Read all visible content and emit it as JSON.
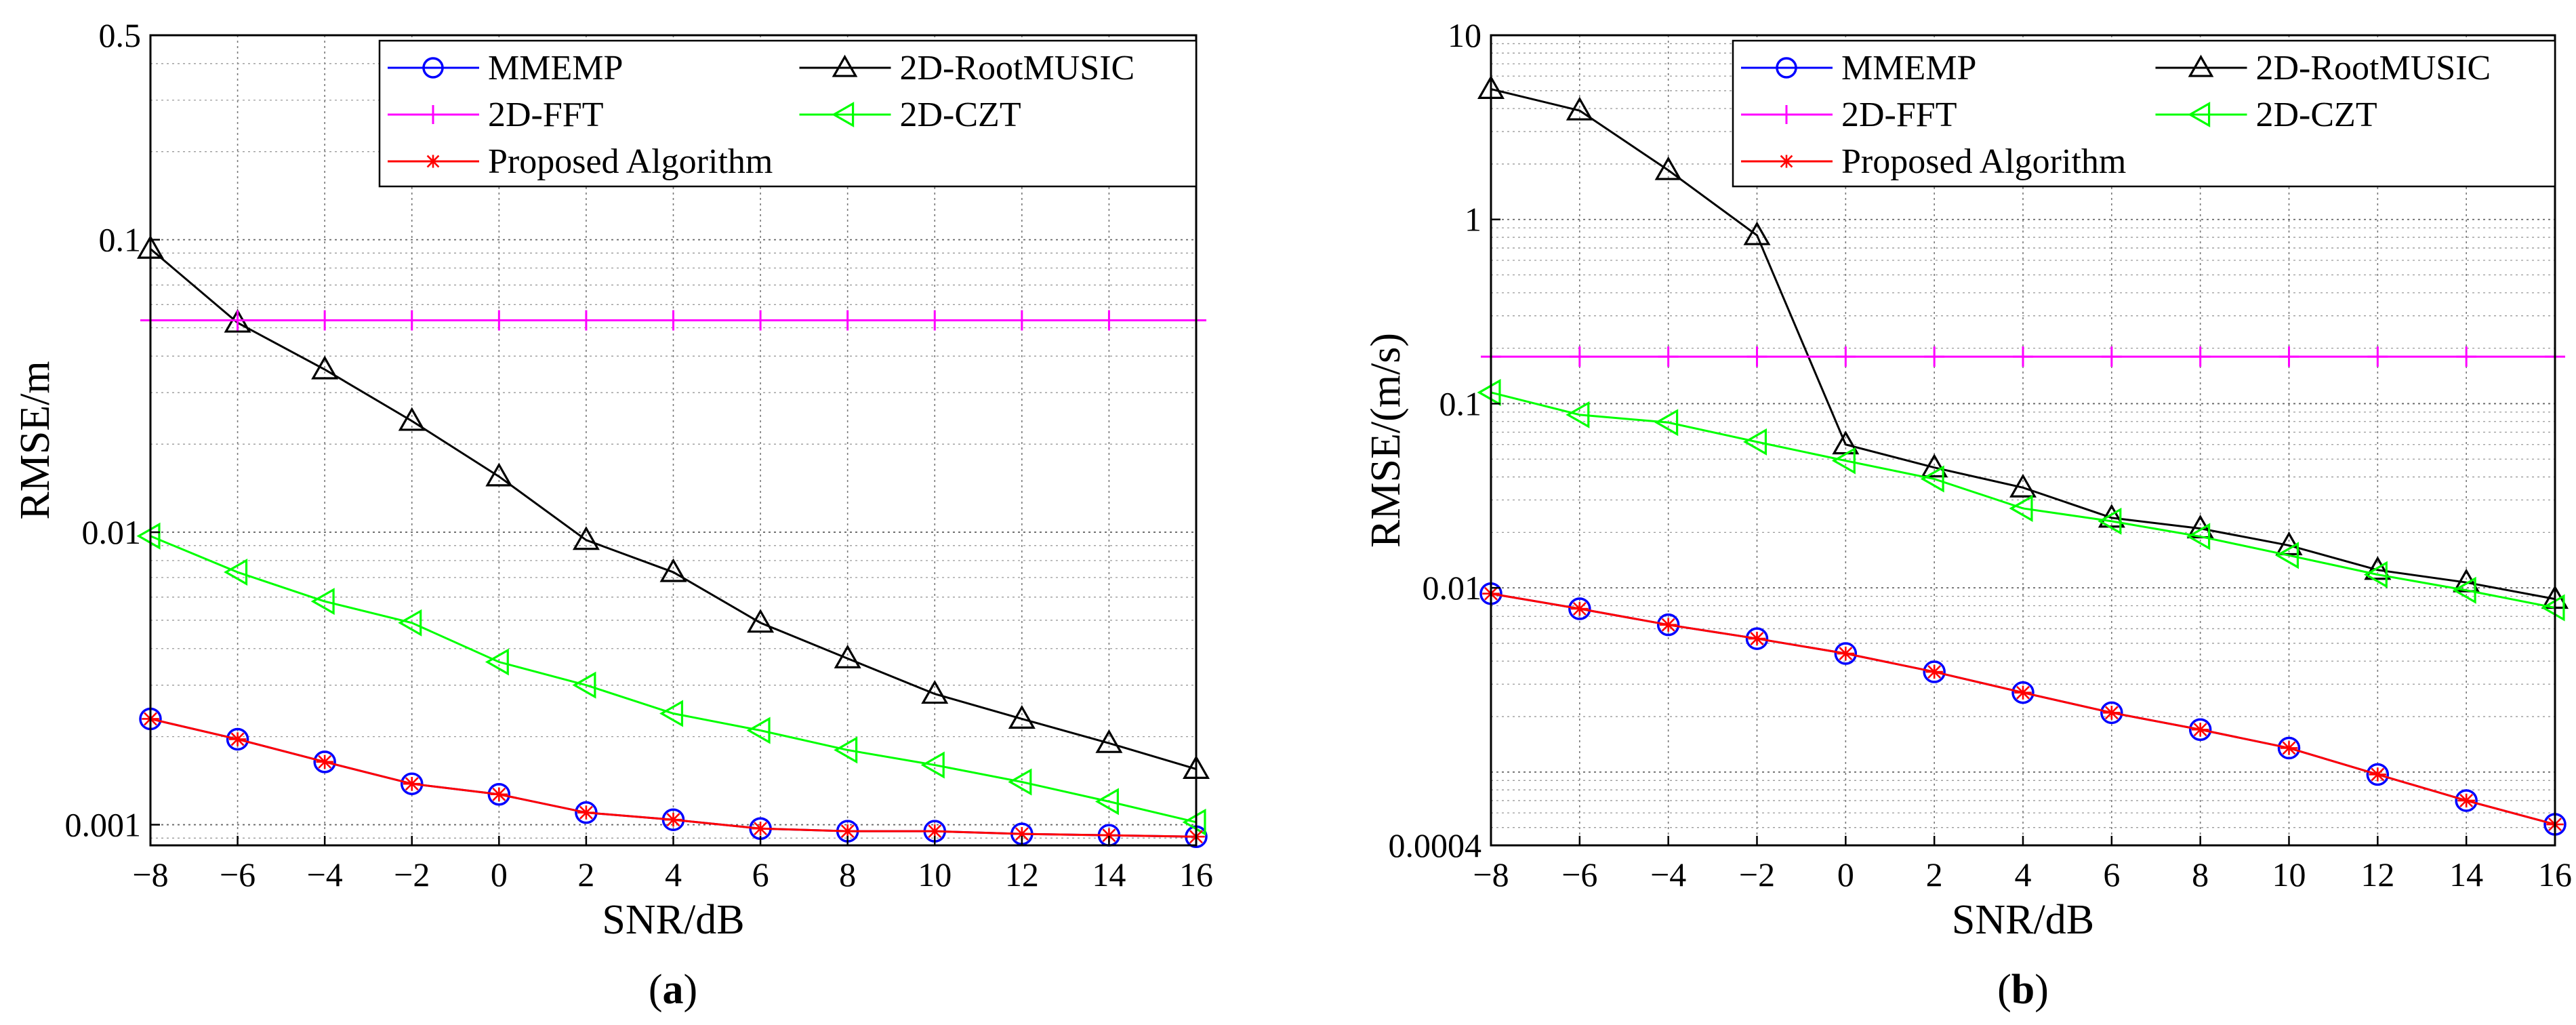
{
  "colors": {
    "MMEMP": "#0000ff",
    "2D-RootMUSIC": "#000000",
    "2D-FFT": "#ff00ff",
    "2D-CZT": "#00ff00",
    "Proposed Algorithm": "#ff0000"
  },
  "chart_data": [
    {
      "type": "line",
      "panel": "a",
      "caption_letter": "a",
      "xlabel": "SNR/dB",
      "ylabel": "RMSE/m",
      "yscale": "log",
      "xlim": [
        -8,
        16
      ],
      "ylim": [
        0.00085,
        0.5
      ],
      "x": [
        -8,
        -6,
        -4,
        -2,
        0,
        2,
        4,
        6,
        8,
        10,
        12,
        14,
        16
      ],
      "x_tick_labels": [
        "−8",
        "−6",
        "−4",
        "−2",
        "0",
        "2",
        "4",
        "6",
        "8",
        "10",
        "12",
        "14",
        "16"
      ],
      "y_ticks": [
        0.001,
        0.01,
        0.1,
        0.5
      ],
      "y_tick_labels": [
        "0.001",
        "0.01",
        "0.1",
        "0.5"
      ],
      "grid": true,
      "legend_position": "top-right",
      "series": [
        {
          "name": "MMEMP",
          "marker": "circle",
          "values": [
            0.0023,
            0.00196,
            0.00164,
            0.00138,
            0.00127,
            0.0011,
            0.00104,
            0.00097,
            0.00095,
            0.00095,
            0.00093,
            0.00092,
            0.00091
          ]
        },
        {
          "name": "2D-RootMUSIC",
          "marker": "triangle-up",
          "values": [
            0.093,
            0.052,
            0.036,
            0.024,
            0.0155,
            0.0094,
            0.0073,
            0.0049,
            0.0037,
            0.0028,
            0.0023,
            0.0019,
            0.00155
          ]
        },
        {
          "name": "2D-FFT",
          "marker": "plus",
          "values": [
            0.053,
            0.053,
            0.053,
            0.053,
            0.053,
            0.053,
            0.053,
            0.053,
            0.053,
            0.053,
            0.053,
            0.053,
            0.053
          ]
        },
        {
          "name": "2D-CZT",
          "marker": "triangle-left",
          "values": [
            0.0097,
            0.0073,
            0.0058,
            0.0049,
            0.0036,
            0.003,
            0.0024,
            0.0021,
            0.0018,
            0.0016,
            0.0014,
            0.0012,
            0.00102
          ]
        },
        {
          "name": "Proposed Algorithm",
          "marker": "asterisk",
          "values": [
            0.0023,
            0.00196,
            0.00164,
            0.00138,
            0.00127,
            0.0011,
            0.00104,
            0.00097,
            0.00095,
            0.00095,
            0.00093,
            0.00092,
            0.00091
          ]
        }
      ]
    },
    {
      "type": "line",
      "panel": "b",
      "caption_letter": "b",
      "xlabel": "SNR/dB",
      "ylabel": "RMSE/(m/s)",
      "yscale": "log",
      "xlim": [
        -8,
        16
      ],
      "ylim": [
        0.0004,
        10
      ],
      "x": [
        -8,
        -6,
        -4,
        -2,
        0,
        2,
        4,
        6,
        8,
        10,
        12,
        14,
        16
      ],
      "x_tick_labels": [
        "−8",
        "−6",
        "−4",
        "−2",
        "0",
        "2",
        "4",
        "6",
        "8",
        "10",
        "12",
        "14",
        "16"
      ],
      "y_ticks": [
        0.0004,
        0.01,
        0.1,
        1,
        10
      ],
      "y_tick_labels": [
        "0.0004",
        "0.01",
        "0.1",
        "1",
        "10"
      ],
      "grid": true,
      "legend_position": "top-right",
      "series": [
        {
          "name": "MMEMP",
          "marker": "circle",
          "values": [
            0.0093,
            0.0077,
            0.0063,
            0.0053,
            0.0044,
            0.0035,
            0.0027,
            0.0021,
            0.0017,
            0.00135,
            0.00097,
            0.0007,
            0.00052
          ]
        },
        {
          "name": "2D-RootMUSIC",
          "marker": "triangle-up",
          "values": [
            5.1,
            3.9,
            1.85,
            0.82,
            0.06,
            0.045,
            0.035,
            0.024,
            0.021,
            0.017,
            0.0125,
            0.0107,
            0.0087
          ]
        },
        {
          "name": "2D-FFT",
          "marker": "plus",
          "values": [
            0.18,
            0.18,
            0.18,
            0.18,
            0.18,
            0.18,
            0.18,
            0.18,
            0.18,
            0.18,
            0.18,
            0.18,
            0.18
          ]
        },
        {
          "name": "2D-CZT",
          "marker": "triangle-left",
          "values": [
            0.115,
            0.087,
            0.079,
            0.062,
            0.049,
            0.039,
            0.027,
            0.023,
            0.019,
            0.015,
            0.0118,
            0.0097,
            0.0078
          ]
        },
        {
          "name": "Proposed Algorithm",
          "marker": "asterisk",
          "values": [
            0.0093,
            0.0077,
            0.0063,
            0.0053,
            0.0044,
            0.0035,
            0.0027,
            0.0021,
            0.0017,
            0.00135,
            0.00097,
            0.0007,
            0.00052
          ]
        }
      ]
    }
  ]
}
